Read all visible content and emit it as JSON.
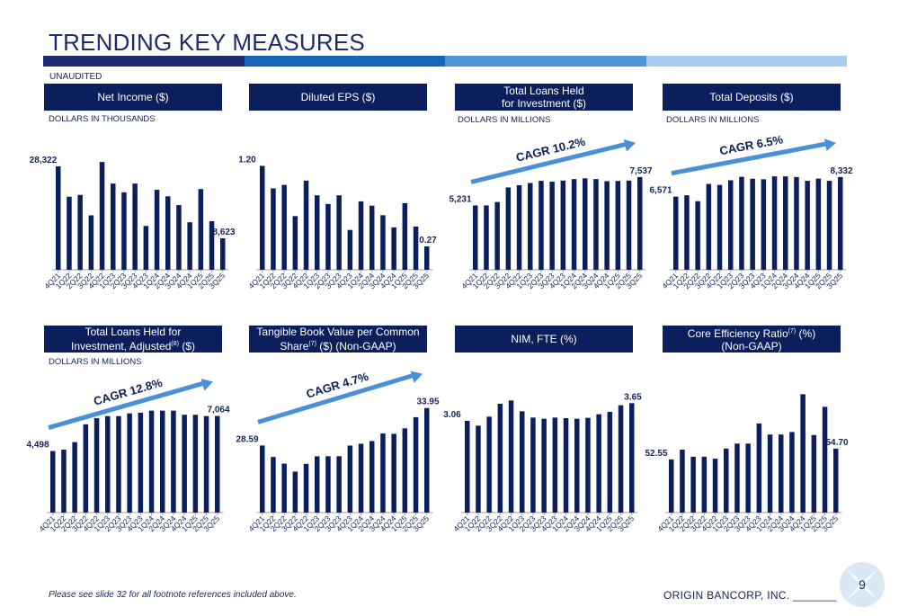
{
  "title": "TRENDING KEY MEASURES",
  "unaudited": "UNAUDITED",
  "strip_colors": [
    "#1f2b6e",
    "#1565b8",
    "#4e95d6",
    "#a9cdef"
  ],
  "footnote": "Please see slide 32 for all footnote references included above.",
  "company": "ORIGIN BANCORP, INC. _______",
  "page_number": "9",
  "colors": {
    "bar": "#0b1f5c",
    "arrow": "#4a90d9",
    "header": "#0b1f5c"
  },
  "quarters": [
    "4Q21",
    "1Q22",
    "2Q22",
    "3Q22",
    "4Q22",
    "1Q23",
    "2Q23",
    "3Q23",
    "4Q23",
    "1Q24",
    "2Q24",
    "3Q24",
    "4Q24",
    "1Q25",
    "2Q25",
    "3Q25"
  ],
  "panels": {
    "p1": {
      "header_pre": "Net Income ($)",
      "header_sup": "",
      "header_post": "",
      "sub": "DOLLARS IN THOUSANDS"
    },
    "p2": {
      "header_pre": "Diluted EPS ($)",
      "header_sup": "",
      "header_post": "",
      "sub": ""
    },
    "p3": {
      "header_pre": "Total Loans Held\nfor Investment ($)",
      "header_sup": "",
      "header_post": "",
      "sub": "DOLLARS IN MILLIONS"
    },
    "p4": {
      "header_pre": "Total Deposits ($)",
      "header_sup": "",
      "header_post": "",
      "sub": "DOLLARS IN MILLIONS"
    },
    "p5": {
      "header_pre": "Total Loans Held for\nInvestment, Adjusted",
      "header_sup": "(8)",
      "header_post": " ($)",
      "sub": "DOLLARS IN MILLIONS"
    },
    "p6": {
      "header_pre": "Tangible Book Value per Common\nShare",
      "header_sup": "(7)",
      "header_post": " ($) (Non-GAAP)",
      "sub": ""
    },
    "p7": {
      "header_pre": "NIM, FTE (%)",
      "header_sup": "",
      "header_post": "",
      "sub": ""
    },
    "p8": {
      "header_pre": "Core Efficiency Ratio",
      "header_sup": "(7)",
      "header_post": " (%)\n(Non-GAAP)",
      "sub": ""
    }
  },
  "chart_data": [
    {
      "id": "p1",
      "type": "bar",
      "title": "Net Income ($)",
      "categories": [
        "4Q21",
        "1Q22",
        "2Q22",
        "3Q22",
        "4Q22",
        "1Q23",
        "2Q23",
        "3Q23",
        "4Q23",
        "1Q24",
        "2Q24",
        "3Q24",
        "4Q24",
        "1Q25",
        "2Q25",
        "3Q25"
      ],
      "values": [
        28322,
        20000,
        20500,
        14900,
        29500,
        23600,
        21200,
        23600,
        12000,
        21900,
        20100,
        17700,
        13000,
        22100,
        13300,
        8623
      ],
      "data_labels": {
        "0": "28,322",
        "15": "8,623"
      },
      "ylim": [
        0,
        32000
      ],
      "cagr": null
    },
    {
      "id": "p2",
      "type": "bar",
      "title": "Diluted EPS ($)",
      "categories": [
        "4Q21",
        "1Q22",
        "2Q22",
        "3Q22",
        "4Q22",
        "1Q23",
        "2Q23",
        "3Q23",
        "4Q23",
        "1Q24",
        "2Q24",
        "3Q24",
        "4Q24",
        "1Q25",
        "2Q25",
        "3Q25"
      ],
      "values": [
        1.2,
        0.94,
        0.98,
        0.62,
        1.03,
        0.86,
        0.76,
        0.86,
        0.46,
        0.79,
        0.74,
        0.63,
        0.49,
        0.77,
        0.5,
        0.27
      ],
      "data_labels": {
        "0": "1.20",
        "15": "0.27"
      },
      "ylim": [
        0,
        1.35
      ],
      "cagr": null
    },
    {
      "id": "p3",
      "type": "bar",
      "title": "Total Loans Held for Investment ($)",
      "categories": [
        "4Q21",
        "1Q22",
        "2Q22",
        "3Q22",
        "4Q22",
        "1Q23",
        "2Q23",
        "3Q23",
        "4Q23",
        "1Q24",
        "2Q24",
        "3Q24",
        "4Q24",
        "1Q25",
        "2Q25",
        "3Q25"
      ],
      "values": [
        5231,
        5231,
        5510,
        6690,
        6870,
        7050,
        7230,
        7160,
        7250,
        7370,
        7430,
        7370,
        7200,
        7220,
        7250,
        7537
      ],
      "data_labels": {
        "0": "5,231",
        "15": "7,537"
      },
      "ylim": [
        0,
        9500
      ],
      "cagr": "CAGR 10.2%"
    },
    {
      "id": "p4",
      "type": "bar",
      "title": "Total Deposits ($)",
      "categories": [
        "4Q21",
        "1Q22",
        "2Q22",
        "3Q22",
        "4Q22",
        "1Q23",
        "2Q23",
        "3Q23",
        "4Q23",
        "1Q24",
        "2Q24",
        "3Q24",
        "4Q24",
        "1Q25",
        "2Q25",
        "3Q25"
      ],
      "values": [
        6571,
        6690,
        6160,
        7710,
        7620,
        8040,
        8350,
        8180,
        8130,
        8390,
        8390,
        8330,
        7990,
        8190,
        7990,
        8332
      ],
      "data_labels": {
        "0": "6,571",
        "15": "8,332"
      },
      "ylim": [
        0,
        10500
      ],
      "cagr": "CAGR 6.5%"
    },
    {
      "id": "p5",
      "type": "bar",
      "title": "Total Loans Held for Investment, Adjusted ($)",
      "categories": [
        "4Q21",
        "1Q22",
        "2Q22",
        "3Q22",
        "4Q22",
        "1Q23",
        "2Q23",
        "3Q23",
        "4Q23",
        "1Q24",
        "2Q24",
        "3Q24",
        "4Q24",
        "1Q25",
        "2Q25",
        "3Q25"
      ],
      "values": [
        4498,
        4600,
        5150,
        6450,
        6900,
        7050,
        7050,
        7250,
        7300,
        7450,
        7450,
        7450,
        7150,
        7150,
        7050,
        7064
      ],
      "data_labels": {
        "0": "4,498",
        "15": "7,064"
      },
      "ylim": [
        0,
        9200
      ],
      "cagr": "CAGR 12.8%"
    },
    {
      "id": "p6",
      "type": "bar",
      "title": "Tangible Book Value per Common Share ($) (Non-GAAP)",
      "categories": [
        "4Q21",
        "1Q22",
        "2Q22",
        "3Q22",
        "4Q22",
        "1Q23",
        "2Q23",
        "3Q23",
        "4Q23",
        "1Q24",
        "2Q24",
        "3Q24",
        "4Q24",
        "1Q25",
        "2Q25",
        "3Q25"
      ],
      "values": [
        28.59,
        26.95,
        26.0,
        24.86,
        25.97,
        27.05,
        27.06,
        27.06,
        28.58,
        28.84,
        29.23,
        30.31,
        30.26,
        31.04,
        32.64,
        33.95
      ],
      "data_labels": {
        "0": "28.59",
        "15": "33.95"
      },
      "ylim": [
        19,
        37
      ],
      "cagr": "CAGR 4.7%"
    },
    {
      "id": "p7",
      "type": "bar",
      "title": "NIM, FTE (%)",
      "categories": [
        "4Q21",
        "1Q22",
        "2Q22",
        "3Q22",
        "4Q22",
        "1Q23",
        "2Q23",
        "3Q23",
        "4Q23",
        "1Q24",
        "2Q24",
        "3Q24",
        "4Q24",
        "1Q25",
        "2Q25",
        "3Q25"
      ],
      "values": [
        3.06,
        2.9,
        3.2,
        3.63,
        3.74,
        3.38,
        3.17,
        3.13,
        3.17,
        3.15,
        3.13,
        3.16,
        3.28,
        3.36,
        3.58,
        3.65
      ],
      "data_labels": {
        "0": "3.06",
        "15": "3.65"
      },
      "ylim": [
        0,
        4.2
      ],
      "cagr": null
    },
    {
      "id": "p8",
      "type": "bar",
      "title": "Core Efficiency Ratio (%) (Non-GAAP)",
      "categories": [
        "4Q21",
        "1Q22",
        "2Q22",
        "3Q22",
        "4Q22",
        "1Q23",
        "2Q23",
        "3Q23",
        "4Q23",
        "1Q24",
        "2Q24",
        "3Q24",
        "4Q24",
        "1Q25",
        "2Q25",
        "3Q25"
      ],
      "values": [
        52.55,
        54.5,
        53.1,
        53.1,
        52.7,
        54.7,
        55.7,
        55.7,
        59.7,
        57.5,
        57.5,
        58.0,
        65.5,
        57.4,
        63.0,
        54.7
      ],
      "data_labels": {
        "0": "52.55",
        "15": "54.70"
      },
      "ylim": [
        42,
        67
      ],
      "cagr": null
    }
  ]
}
